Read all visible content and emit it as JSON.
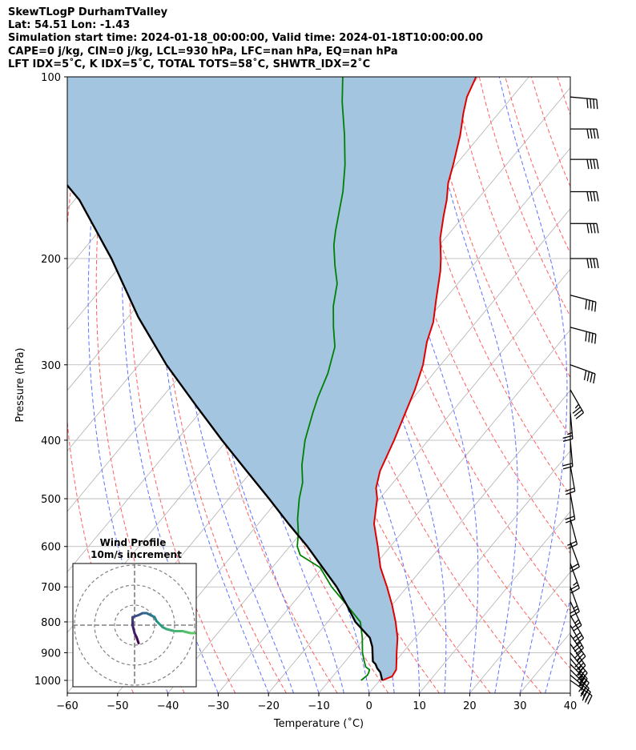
{
  "header": {
    "line1": "SkewTLogP DurhamTValley",
    "line2": "Lat: 54.51   Lon: -1.43",
    "line3": "Simulation start time: 2024-01-18_00:00:00, Valid time: 2024-01-18T10:00:00.00",
    "line4": "CAPE=0 j/kg, CIN=0 j/kg, LCL=930 hPa, LFC=nan hPa, EQ=nan hPa",
    "line5": "LFT IDX=5˚C, K IDX=5˚C, TOTAL TOTS=58˚C, SHWTR_IDX=2˚C"
  },
  "chart_data": {
    "type": "line",
    "title": "SkewTLogP DurhamTValley",
    "xlabel": "Temperature (˚C)",
    "ylabel": "Pressure (hPa)",
    "xlim": [
      -60,
      40
    ],
    "ylim": [
      1050,
      100
    ],
    "x_ticks": [
      -60,
      -50,
      -40,
      -30,
      -20,
      -10,
      0,
      10,
      20,
      30,
      40
    ],
    "x_tick_labels": [
      "−60",
      "−50",
      "−40",
      "−30",
      "−20",
      "−10",
      "0",
      "10",
      "20",
      "30",
      "40"
    ],
    "y_ticks": [
      1000,
      900,
      800,
      700,
      600,
      500,
      400,
      300,
      200,
      100
    ],
    "y_tick_labels": [
      "1000",
      "900",
      "800",
      "700",
      "600",
      "500",
      "400",
      "300",
      "200",
      "100"
    ],
    "grid": true,
    "series": [
      {
        "name": "Temperature",
        "color": "#e00000",
        "points": [
          [
            0.5,
            1000
          ],
          [
            1.8,
            985
          ],
          [
            1.5,
            960
          ],
          [
            0.2,
            930
          ],
          [
            -1.2,
            900
          ],
          [
            -3.5,
            850
          ],
          [
            -6.5,
            800
          ],
          [
            -10,
            750
          ],
          [
            -14,
            700
          ],
          [
            -18.5,
            650
          ],
          [
            -22.5,
            600
          ],
          [
            -27,
            550
          ],
          [
            -30.5,
            500
          ],
          [
            -32.5,
            480
          ],
          [
            -34.5,
            450
          ],
          [
            -36.8,
            400
          ],
          [
            -38.5,
            370
          ],
          [
            -41,
            330
          ],
          [
            -43.5,
            300
          ],
          [
            -46.5,
            275
          ],
          [
            -48.5,
            255
          ],
          [
            -51.5,
            235
          ],
          [
            -55.5,
            210
          ],
          [
            -57.5,
            200
          ],
          [
            -61,
            185
          ],
          [
            -64,
            170
          ],
          [
            -66,
            160
          ],
          [
            -68.5,
            150
          ],
          [
            -70.5,
            140
          ],
          [
            -74,
            125
          ],
          [
            -77,
            115
          ],
          [
            -79,
            108
          ],
          [
            -80.5,
            100
          ]
        ]
      },
      {
        "name": "Dewpoint",
        "color": "#008000",
        "points": [
          [
            -3.7,
            1000
          ],
          [
            -3.3,
            980
          ],
          [
            -3.5,
            970
          ],
          [
            -3.8,
            960
          ],
          [
            -5,
            950
          ],
          [
            -6.2,
            930
          ],
          [
            -8,
            900
          ],
          [
            -10.5,
            850
          ],
          [
            -13.5,
            800
          ],
          [
            -19,
            750
          ],
          [
            -25,
            700
          ],
          [
            -30.5,
            650
          ],
          [
            -36.5,
            620
          ],
          [
            -38.5,
            600
          ],
          [
            -40.5,
            570
          ],
          [
            -43,
            540
          ],
          [
            -46,
            500
          ],
          [
            -48,
            470
          ],
          [
            -51,
            440
          ],
          [
            -54.5,
            400
          ],
          [
            -57.5,
            360
          ],
          [
            -59,
            340
          ],
          [
            -61,
            310
          ],
          [
            -64,
            280
          ],
          [
            -67.5,
            260
          ],
          [
            -71,
            240
          ],
          [
            -74,
            220
          ],
          [
            -77.5,
            205
          ],
          [
            -81,
            190
          ],
          [
            -83,
            180
          ],
          [
            -88,
            155
          ],
          [
            -92,
            140
          ],
          [
            -97,
            125
          ],
          [
            -103,
            110
          ],
          [
            -107,
            100
          ]
        ]
      },
      {
        "name": "Parcel",
        "color": "#000000",
        "points": [
          [
            0.5,
            1000
          ],
          [
            -1.2,
            970
          ],
          [
            -2.5,
            955
          ],
          [
            -3.5,
            940
          ],
          [
            -4.5,
            930
          ],
          [
            -5.5,
            910
          ],
          [
            -7,
            880
          ],
          [
            -9,
            850
          ],
          [
            -14.5,
            800
          ],
          [
            -19,
            750
          ],
          [
            -24,
            700
          ],
          [
            -30,
            650
          ],
          [
            -36.5,
            600
          ],
          [
            -44,
            550
          ],
          [
            -52,
            500
          ],
          [
            -61,
            450
          ],
          [
            -71,
            400
          ],
          [
            -82,
            350
          ],
          [
            -94.5,
            300
          ],
          [
            -108,
            250
          ],
          [
            -123,
            200
          ],
          [
            -139,
            160
          ],
          [
            -157,
            130
          ],
          [
            -174,
            115
          ],
          [
            -190,
            100
          ]
        ]
      }
    ],
    "fill": {
      "name": "Parcel - Temperature area",
      "color": "#a3c5e0",
      "between": [
        "Temperature",
        "Parcel"
      ]
    },
    "reference_lines": {
      "isotherms": {
        "style": "solid",
        "color": "#b0b0b0",
        "values": [
          -180,
          -170,
          -160,
          -150,
          -140,
          -130,
          -120,
          -110,
          -100,
          -90,
          -80,
          -70,
          -60,
          -50,
          -40,
          -30,
          -20,
          -10,
          0,
          10,
          20,
          30,
          40
        ]
      },
      "dry_adiabats": {
        "style": "dashed",
        "color": "#ff6060",
        "theta_c": [
          -50,
          -40,
          -30,
          -20,
          -10,
          0,
          10,
          20,
          30,
          40,
          50,
          60,
          70,
          80,
          90,
          100,
          110,
          120,
          130,
          140,
          150,
          160,
          170
        ]
      },
      "moist_adiabats": {
        "style": "dashed",
        "color": "#6070ff",
        "start_t_c": [
          -40,
          -30,
          -20,
          -15,
          -10,
          -5,
          0,
          5,
          10,
          15,
          20,
          25,
          30,
          35
        ]
      }
    },
    "wind_barbs": {
      "units": "kt",
      "levels": [
        {
          "p": 1000,
          "speed": 35,
          "dir": 305
        },
        {
          "p": 980,
          "speed": 35,
          "dir": 310
        },
        {
          "p": 960,
          "speed": 35,
          "dir": 315
        },
        {
          "p": 940,
          "speed": 35,
          "dir": 315
        },
        {
          "p": 920,
          "speed": 35,
          "dir": 320
        },
        {
          "p": 900,
          "speed": 35,
          "dir": 320
        },
        {
          "p": 870,
          "speed": 35,
          "dir": 325
        },
        {
          "p": 840,
          "speed": 30,
          "dir": 325
        },
        {
          "p": 810,
          "speed": 30,
          "dir": 330
        },
        {
          "p": 780,
          "speed": 30,
          "dir": 330
        },
        {
          "p": 740,
          "speed": 25,
          "dir": 335
        },
        {
          "p": 700,
          "speed": 25,
          "dir": 340
        },
        {
          "p": 640,
          "speed": 25,
          "dir": 340
        },
        {
          "p": 590,
          "speed": 20,
          "dir": 340
        },
        {
          "p": 540,
          "speed": 20,
          "dir": 345
        },
        {
          "p": 490,
          "speed": 20,
          "dir": 350
        },
        {
          "p": 440,
          "speed": 20,
          "dir": 350
        },
        {
          "p": 400,
          "speed": 20,
          "dir": 355
        },
        {
          "p": 360,
          "speed": 25,
          "dir": 355
        },
        {
          "p": 330,
          "speed": 35,
          "dir": 330
        },
        {
          "p": 300,
          "speed": 40,
          "dir": 290
        },
        {
          "p": 260,
          "speed": 40,
          "dir": 285
        },
        {
          "p": 230,
          "speed": 40,
          "dir": 285
        },
        {
          "p": 200,
          "speed": 40,
          "dir": 270
        },
        {
          "p": 175,
          "speed": 40,
          "dir": 270
        },
        {
          "p": 155,
          "speed": 40,
          "dir": 270
        },
        {
          "p": 137,
          "speed": 40,
          "dir": 270
        },
        {
          "p": 122,
          "speed": 40,
          "dir": 270
        },
        {
          "p": 108,
          "speed": 40,
          "dir": 275
        }
      ]
    },
    "inset": {
      "title": "Wind Profile",
      "subtitle": "10m/s increment",
      "type": "hodograph",
      "ring_spacing_ms": 10,
      "rings": 3,
      "hodograph_uv_ms": [
        [
          2,
          9
        ],
        [
          1,
          6
        ],
        [
          0,
          4
        ],
        [
          -1,
          0
        ],
        [
          -1,
          -2
        ],
        [
          -1,
          -4
        ],
        [
          2,
          -5
        ],
        [
          4,
          -6
        ],
        [
          6,
          -6
        ],
        [
          8,
          -5
        ],
        [
          10,
          -4
        ],
        [
          11,
          -2
        ],
        [
          12,
          -1
        ],
        [
          14,
          1
        ],
        [
          16,
          2
        ],
        [
          20,
          3
        ],
        [
          24,
          3
        ],
        [
          28,
          4
        ],
        [
          30,
          4
        ]
      ]
    }
  }
}
